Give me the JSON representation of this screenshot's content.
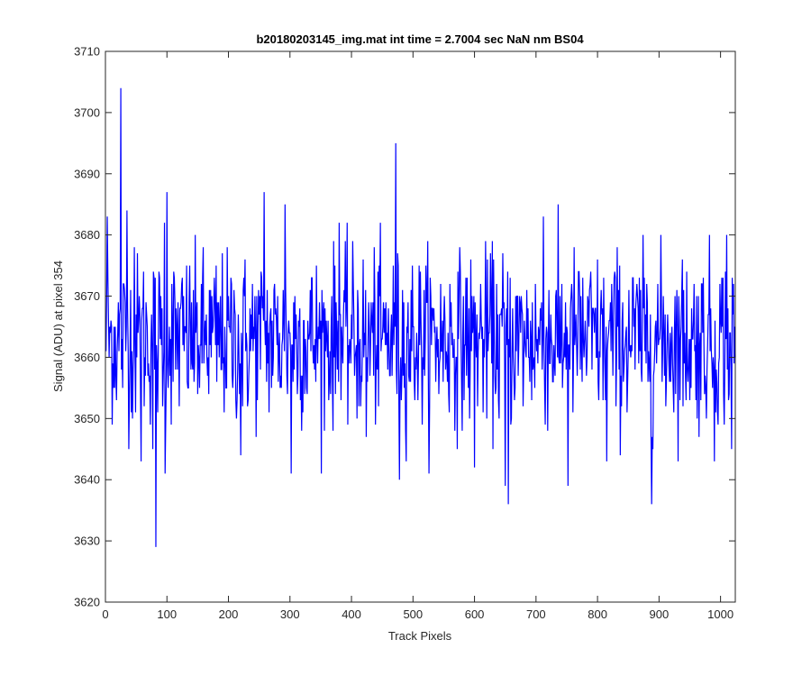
{
  "chart_data": {
    "type": "line",
    "title": "b20180203145_img.mat int time = 2.7004 sec  NaN nm BS04",
    "xlabel": "Track Pixels",
    "ylabel": "Signal (ADU) at pixel 354",
    "xlim": [
      0,
      1024
    ],
    "ylim": [
      3620,
      3710
    ],
    "xticks": [
      0,
      100,
      200,
      300,
      400,
      500,
      600,
      700,
      800,
      900,
      1000
    ],
    "yticks": [
      3620,
      3630,
      3640,
      3650,
      3660,
      3670,
      3680,
      3690,
      3700,
      3710
    ],
    "grid": false,
    "line_color": "#0000ff",
    "series": [
      {
        "noise_profile": {
          "x_start": 1,
          "x_end": 1024,
          "mean": 3663,
          "std": 7.0
        },
        "notable_points": [
          {
            "x": 3,
            "y": 3683
          },
          {
            "x": 25,
            "y": 3704
          },
          {
            "x": 35,
            "y": 3684
          },
          {
            "x": 47,
            "y": 3678
          },
          {
            "x": 58,
            "y": 3643
          },
          {
            "x": 77,
            "y": 3645
          },
          {
            "x": 82,
            "y": 3629
          },
          {
            "x": 96,
            "y": 3682
          },
          {
            "x": 100,
            "y": 3687
          },
          {
            "x": 97,
            "y": 3641
          },
          {
            "x": 220,
            "y": 3644
          },
          {
            "x": 258,
            "y": 3687
          },
          {
            "x": 292,
            "y": 3685
          },
          {
            "x": 302,
            "y": 3641
          },
          {
            "x": 380,
            "y": 3682
          },
          {
            "x": 424,
            "y": 3647
          },
          {
            "x": 472,
            "y": 3695
          },
          {
            "x": 478,
            "y": 3640
          },
          {
            "x": 600,
            "y": 3642
          },
          {
            "x": 650,
            "y": 3639
          },
          {
            "x": 655,
            "y": 3636
          },
          {
            "x": 712,
            "y": 3683
          },
          {
            "x": 752,
            "y": 3639
          },
          {
            "x": 815,
            "y": 3643
          },
          {
            "x": 888,
            "y": 3636
          },
          {
            "x": 990,
            "y": 3643
          },
          {
            "x": 1010,
            "y": 3680
          },
          {
            "x": 1018,
            "y": 3645
          }
        ]
      }
    ]
  }
}
